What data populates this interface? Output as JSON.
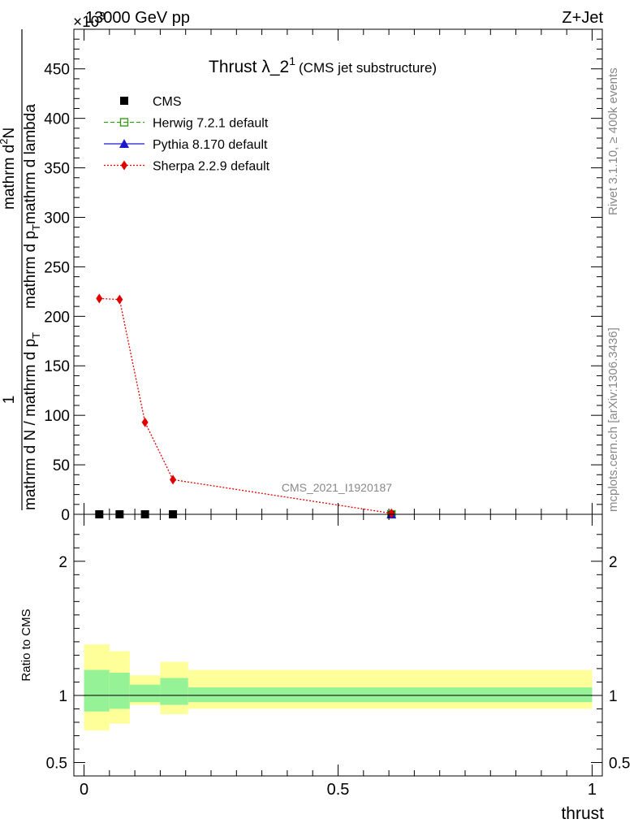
{
  "header": {
    "left": "13000 GeV pp",
    "right": "Z+Jet",
    "exponent": "×10",
    "exponent_power": "3"
  },
  "side_text": {
    "rivet": "Rivet 3.1.10, ≥ 400k events",
    "site": "mcplots.cern.ch [arXiv:1306.3436]"
  },
  "chart_data": [
    {
      "type": "line",
      "title": "Thrust λ_2",
      "title_sup": "1",
      "title_suffix": "(CMS jet substructure)",
      "watermark": "CMS_2021_I1920187",
      "ylabel_num": "1",
      "ylabel_den": "mathrm d N / mathrm d p",
      "ylabel_sub": "T",
      "ylabel_top": "mathrm d",
      "ylabel_top_sup": "2",
      "ylabel_top_N": "N",
      "ylabel_line2": "mathrm d p",
      "ylabel_line2_sub": "T",
      "ylabel_line2_end": "mathrm d lambda",
      "xlim": [
        -0.02,
        1.02
      ],
      "ylim": [
        0,
        490
      ],
      "y_scale_note": "×10^3",
      "y_ticks": [
        0,
        50,
        100,
        150,
        200,
        250,
        300,
        350,
        400,
        450
      ],
      "y_tick_labels": [
        "0",
        "50",
        "100",
        "150",
        "200",
        "250",
        "300",
        "350",
        "400",
        "450"
      ],
      "legend_position": "top-left",
      "series": [
        {
          "name": "CMS",
          "color": "#000000",
          "marker": "square",
          "x": [
            0.03,
            0.07,
            0.12,
            0.175,
            0.605
          ],
          "y": [
            0,
            0,
            0,
            0,
            0
          ]
        },
        {
          "name": "Herwig 7.2.1 default",
          "color": "#3a9a1e",
          "marker": "open-square",
          "line": "dashed",
          "x": [
            0.605
          ],
          "y": [
            0
          ]
        },
        {
          "name": "Pythia 8.170 default",
          "color": "#1a1acc",
          "marker": "triangle",
          "line": "solid",
          "x": [
            0.605
          ],
          "y": [
            0
          ]
        },
        {
          "name": "Sherpa 2.2.9 default",
          "color": "#e00000",
          "marker": "diamond",
          "line": "dotted",
          "x": [
            0.03,
            0.07,
            0.12,
            0.175,
            0.605
          ],
          "y": [
            218,
            217,
            93,
            35,
            1
          ]
        }
      ]
    },
    {
      "type": "area",
      "ylabel": "Ratio to CMS",
      "xlabel": "thrust",
      "xlim": [
        -0.02,
        1.02
      ],
      "ylim": [
        0.4,
        2.35
      ],
      "y_ticks": [
        0.5,
        1,
        2
      ],
      "y_tick_labels": [
        "0.5",
        "1",
        "2"
      ],
      "x_ticks": [
        0,
        0.5,
        1
      ],
      "x_tick_labels": [
        "0",
        "0.5",
        "1"
      ],
      "bins": [
        {
          "x0": 0.0,
          "x1": 0.05,
          "inner": [
            0.88,
            1.19
          ],
          "outer": [
            0.74,
            1.38
          ]
        },
        {
          "x0": 0.05,
          "x1": 0.09,
          "inner": [
            0.9,
            1.17
          ],
          "outer": [
            0.79,
            1.33
          ]
        },
        {
          "x0": 0.09,
          "x1": 0.15,
          "inner": [
            0.95,
            1.08
          ],
          "outer": [
            0.93,
            1.15
          ]
        },
        {
          "x0": 0.15,
          "x1": 0.205,
          "inner": [
            0.93,
            1.13
          ],
          "outer": [
            0.86,
            1.25
          ]
        },
        {
          "x0": 0.205,
          "x1": 1.0,
          "inner": [
            0.95,
            1.06
          ],
          "outer": [
            0.9,
            1.19
          ]
        }
      ],
      "inner_color": "#96f296",
      "outer_color": "#ffff99",
      "reference_line": 1
    }
  ]
}
